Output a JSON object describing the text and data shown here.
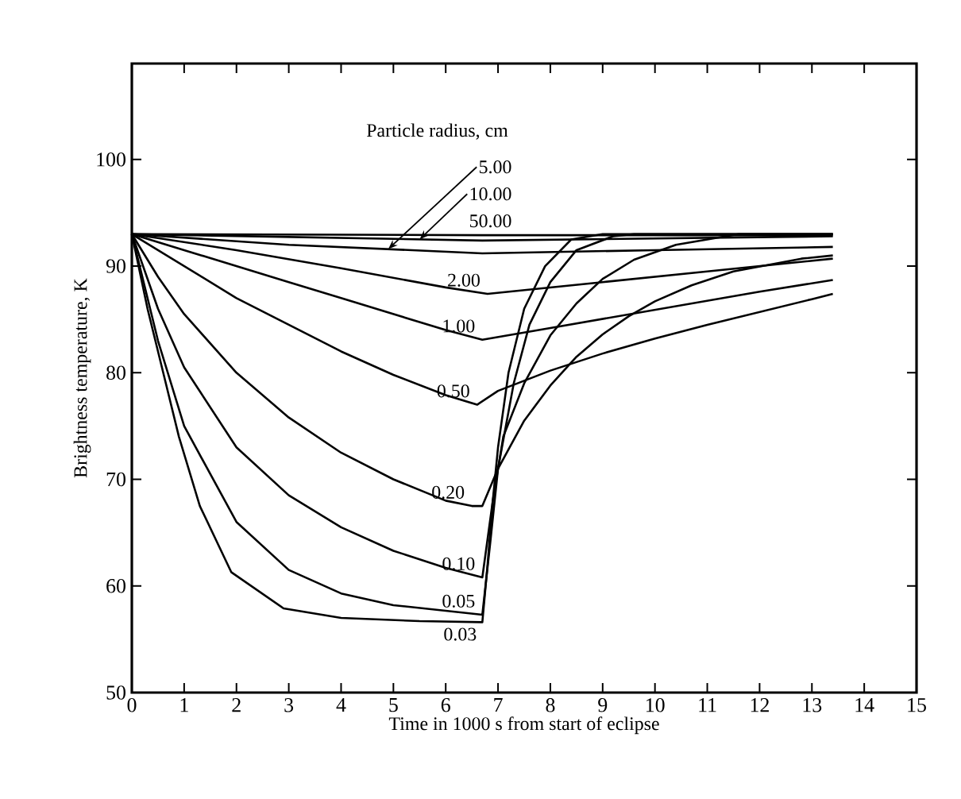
{
  "chart_data": {
    "type": "line",
    "xlabel": "Time in 1000 s from start of eclipse",
    "ylabel": "Brightness temperature, K",
    "legend_title": "Particle radius, cm",
    "xlim": [
      0,
      15
    ],
    "ylim": [
      50,
      109
    ],
    "xticks": [
      0,
      1,
      2,
      3,
      4,
      5,
      6,
      7,
      8,
      9,
      10,
      11,
      12,
      13,
      14,
      15
    ],
    "yticks": [
      50,
      60,
      70,
      80,
      90,
      100
    ],
    "marker": "none",
    "line_style": "solid",
    "series": [
      {
        "name": "0.03",
        "color": "#000000",
        "x": [
          0,
          0.3,
          0.6,
          0.9,
          1.3,
          1.9,
          2.9,
          4,
          5.5,
          6.7,
          6.8,
          6.9,
          7.0,
          7.2,
          7.5,
          7.9,
          8.4,
          9,
          13.4
        ],
        "values": [
          93,
          86,
          80,
          74,
          67.5,
          61.3,
          57.9,
          57,
          56.7,
          56.6,
          62,
          68,
          73,
          80,
          86,
          90,
          92.5,
          93,
          93
        ]
      },
      {
        "name": "0.05",
        "color": "#000000",
        "x": [
          0,
          0.5,
          1,
          2,
          3,
          4,
          5,
          6.7,
          6.85,
          7.0,
          7.3,
          7.6,
          8.0,
          8.5,
          9.2,
          9.6,
          13.4
        ],
        "values": [
          93,
          83,
          75,
          66,
          61.5,
          59.3,
          58.2,
          57.3,
          64,
          71,
          79,
          84.5,
          88.5,
          91.5,
          92.8,
          93,
          93
        ]
      },
      {
        "name": "0.10",
        "color": "#000000",
        "x": [
          0,
          0.5,
          1,
          2,
          3,
          4,
          5,
          6,
          6.7,
          6.9,
          7.1,
          7.5,
          8,
          8.5,
          9,
          9.6,
          10.4,
          11.6,
          13.4
        ],
        "values": [
          93,
          86,
          80.5,
          73,
          68.5,
          65.5,
          63.3,
          61.7,
          60.8,
          68,
          74,
          79,
          83.5,
          86.5,
          88.8,
          90.6,
          92,
          93,
          93
        ]
      },
      {
        "name": "0.20",
        "color": "#000000",
        "x": [
          0,
          0.5,
          1,
          2,
          3,
          4,
          5,
          6,
          6.5,
          6.7,
          7.0,
          7.5,
          8,
          8.5,
          9,
          9.5,
          10,
          10.7,
          11.5,
          12.8,
          13.4
        ],
        "values": [
          93,
          89,
          85.5,
          80,
          75.8,
          72.5,
          70,
          68,
          67.5,
          67.5,
          71,
          75.5,
          78.8,
          81.5,
          83.6,
          85.3,
          86.7,
          88.2,
          89.5,
          90.7,
          91
        ]
      },
      {
        "name": "0.50",
        "color": "#000000",
        "x": [
          0,
          1,
          2,
          3,
          4,
          5,
          6,
          6.6,
          7,
          8,
          9,
          10,
          11,
          12,
          13,
          13.4
        ],
        "values": [
          93,
          90,
          87,
          84.5,
          82,
          79.8,
          77.9,
          77,
          78.3,
          80.2,
          81.8,
          83.2,
          84.5,
          85.7,
          86.9,
          87.4
        ]
      },
      {
        "name": "1.00",
        "color": "#000000",
        "x": [
          0,
          1,
          2,
          3,
          4,
          5,
          6,
          6.7,
          8,
          10,
          12,
          13.4
        ],
        "values": [
          93,
          91.5,
          90,
          88.5,
          87,
          85.5,
          84,
          83.1,
          84.2,
          85.9,
          87.6,
          88.7
        ]
      },
      {
        "name": "2.00",
        "color": "#000000",
        "x": [
          0,
          2,
          4,
          6,
          6.8,
          9,
          11,
          13.4
        ],
        "values": [
          93,
          91.5,
          89.8,
          88,
          87.4,
          88.5,
          89.5,
          90.7
        ]
      },
      {
        "name": "5.00",
        "color": "#000000",
        "x": [
          0,
          3,
          6.7,
          10,
          13.4
        ],
        "values": [
          93,
          92,
          91.2,
          91.5,
          91.8
        ]
      },
      {
        "name": "10.00",
        "color": "#000000",
        "x": [
          0,
          6.7,
          13.4
        ],
        "values": [
          93,
          92.4,
          92.8
        ]
      },
      {
        "name": "50.00",
        "color": "#000000",
        "x": [
          0,
          6.7,
          13.4
        ],
        "values": [
          93,
          92.9,
          92.9
        ]
      }
    ]
  }
}
